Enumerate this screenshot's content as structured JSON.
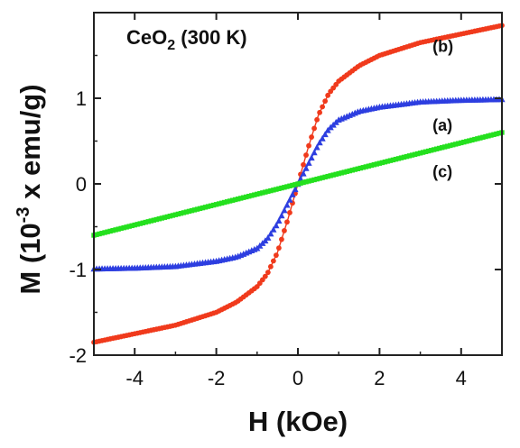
{
  "chart_data": {
    "type": "scatter",
    "title": "CeO2 (300 K)",
    "title_parts": {
      "prefix": "CeO",
      "subscript": "2",
      "suffix": " (300 K)"
    },
    "xlabel": "H (kOe)",
    "ylabel": "M (10-3 x emu/g)",
    "ylabel_parts": {
      "prefix": "M (10",
      "superscript": "-3",
      "suffix": " x emu/g)"
    },
    "xlim": [
      -5,
      5
    ],
    "ylim": [
      -2,
      2
    ],
    "grid": false,
    "xticks": [
      -4,
      -2,
      0,
      2,
      4
    ],
    "yticks": [
      -2,
      -1,
      0,
      1
    ],
    "series": [
      {
        "name": "(b)",
        "color": "#f03a1c",
        "marker": "circle",
        "x": [
          -5,
          -4,
          -3,
          -2,
          -1.5,
          -1,
          -0.75,
          -0.5,
          -0.25,
          0,
          0.25,
          0.5,
          0.75,
          1,
          1.5,
          2,
          3,
          4,
          5
        ],
        "y": [
          -1.85,
          -1.75,
          -1.65,
          -1.5,
          -1.38,
          -1.2,
          -1.05,
          -0.8,
          -0.42,
          0,
          0.42,
          0.8,
          1.05,
          1.2,
          1.38,
          1.5,
          1.65,
          1.75,
          1.85
        ]
      },
      {
        "name": "(a)",
        "color": "#2d3ee0",
        "marker": "triangle",
        "x": [
          -5,
          -4,
          -3,
          -2,
          -1.5,
          -1,
          -0.75,
          -0.5,
          -0.25,
          0,
          0.25,
          0.5,
          0.75,
          1,
          1.5,
          2,
          3,
          4,
          5
        ],
        "y": [
          -0.99,
          -0.98,
          -0.96,
          -0.9,
          -0.85,
          -0.75,
          -0.64,
          -0.46,
          -0.23,
          0,
          0.23,
          0.46,
          0.64,
          0.75,
          0.85,
          0.9,
          0.96,
          0.98,
          0.99
        ]
      },
      {
        "name": "(c)",
        "color": "#24e01e",
        "marker": "square",
        "x": [
          -5,
          -4,
          -3,
          -2,
          -1,
          0,
          1,
          2,
          3,
          4,
          5
        ],
        "y": [
          -0.6,
          -0.48,
          -0.36,
          -0.24,
          -0.12,
          0,
          0.12,
          0.24,
          0.36,
          0.48,
          0.6
        ]
      }
    ],
    "annotations": [
      {
        "text": "(b)",
        "x": 3.3,
        "y": 1.54
      },
      {
        "text": "(a)",
        "x": 3.3,
        "y": 0.62
      },
      {
        "text": "(c)",
        "x": 3.3,
        "y": 0.08
      }
    ]
  }
}
